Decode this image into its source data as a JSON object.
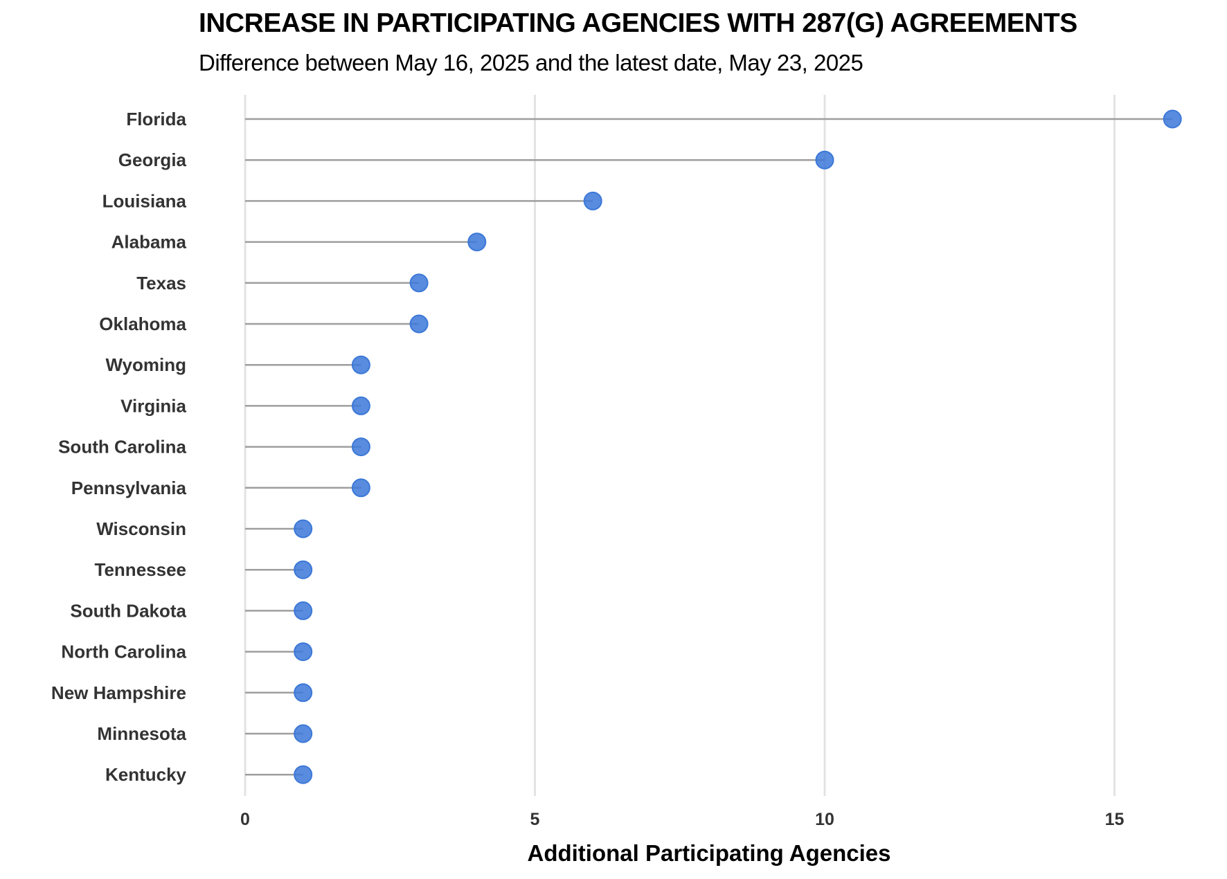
{
  "chart_data": {
    "type": "lollipop",
    "title": "INCREASE IN PARTICIPATING AGENCIES WITH 287(G) AGREEMENTS",
    "subtitle": "Difference between May 16, 2025 and the latest date, May 23, 2025",
    "xlabel": "Additional Participating Agencies",
    "ylabel": "",
    "xlim": [
      0,
      16
    ],
    "xticks": [
      0,
      5,
      10,
      15
    ],
    "grid": "vertical",
    "legend": "none",
    "colors": {
      "marker": "#3c78d8",
      "stem": "#9e9e9e",
      "grid": "#e3e3e3"
    },
    "categories": [
      "Florida",
      "Georgia",
      "Louisiana",
      "Alabama",
      "Texas",
      "Oklahoma",
      "Wyoming",
      "Virginia",
      "South Carolina",
      "Pennsylvania",
      "Wisconsin",
      "Tennessee",
      "South Dakota",
      "North Carolina",
      "New Hampshire",
      "Minnesota",
      "Kentucky"
    ],
    "values": [
      16,
      10,
      6,
      4,
      3,
      3,
      2,
      2,
      2,
      2,
      1,
      1,
      1,
      1,
      1,
      1,
      1
    ]
  }
}
